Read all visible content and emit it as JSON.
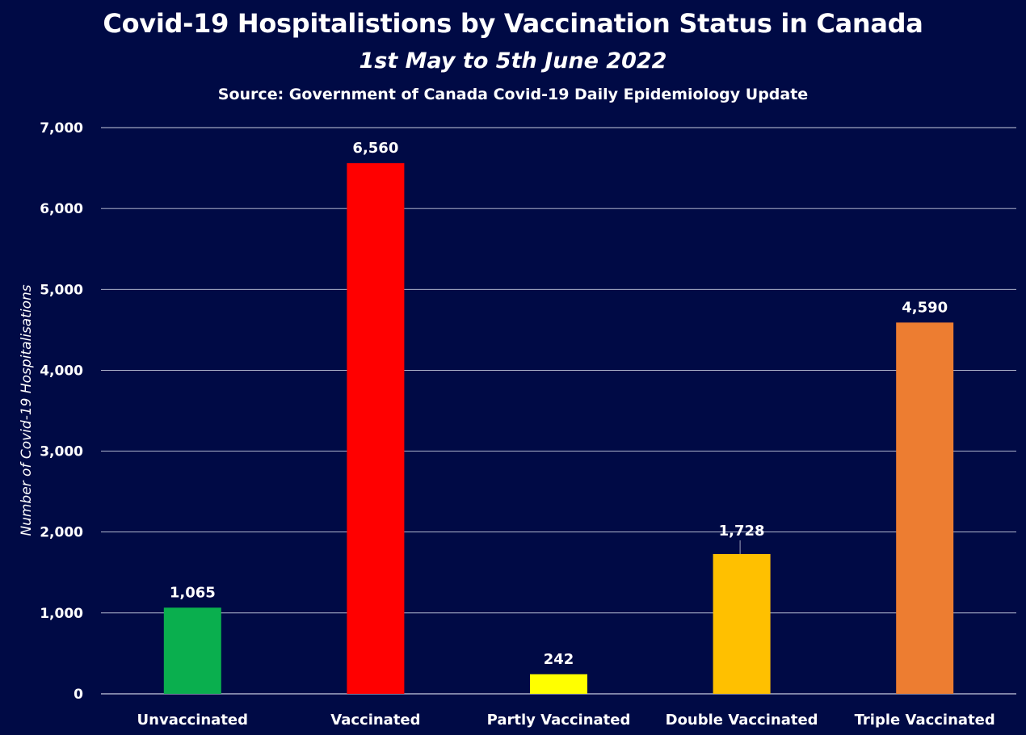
{
  "chart_data": {
    "type": "bar",
    "title": "Covid-19 Hospitalistions by Vaccination Status in Canada",
    "subtitle": "1st May to 5th June 2022",
    "source": "Source: Government of Canada Covid-19 Daily Epidemiology Update",
    "xlabel": "",
    "ylabel": "Number of Covid-19 Hospitalisations",
    "ylim": [
      0,
      7000
    ],
    "yticks": [
      0,
      1000,
      2000,
      3000,
      4000,
      5000,
      6000,
      7000
    ],
    "ytick_labels": [
      "0",
      "1,000",
      "2,000",
      "3,000",
      "4,000",
      "5,000",
      "6,000",
      "7,000"
    ],
    "grid": true,
    "categories": [
      "Unvaccinated",
      "Vaccinated",
      "Partly Vaccinated",
      "Double Vaccinated",
      "Triple Vaccinated"
    ],
    "values": [
      1065,
      6560,
      242,
      1728,
      4590
    ],
    "value_labels": [
      "1,065",
      "6,560",
      "242",
      "1,728",
      "4,590"
    ],
    "colors": [
      "#0aaf4e",
      "#ff0000",
      "#ffff00",
      "#ffc000",
      "#ed7d31"
    ]
  },
  "theme": {
    "background": "#000a45",
    "text": "#ffffff",
    "grid": "#c8cce0"
  }
}
